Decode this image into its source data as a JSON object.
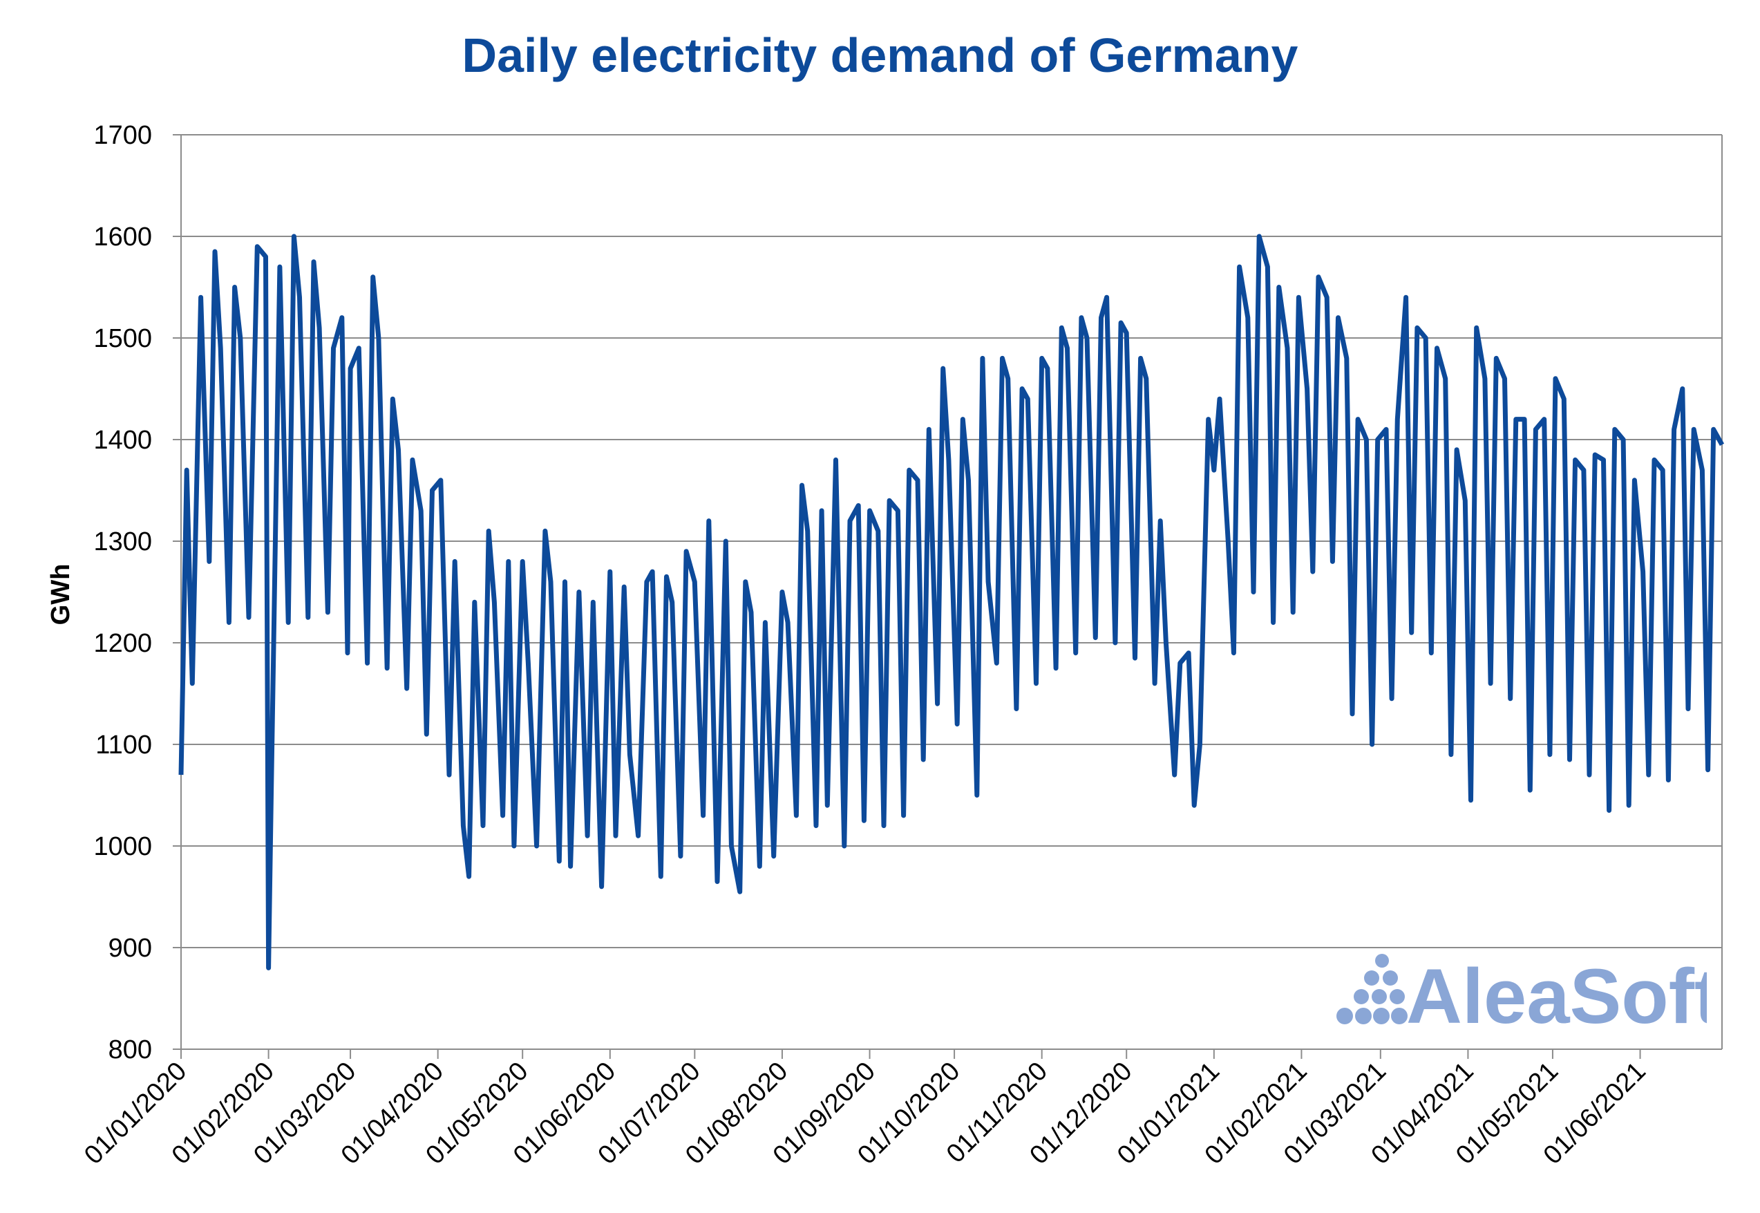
{
  "chart_data": {
    "type": "line",
    "title": "Daily electricity demand of Germany",
    "xlabel": "",
    "ylabel": "GWh",
    "ylim": [
      800,
      1700
    ],
    "yticks": [
      800,
      900,
      1000,
      1100,
      1200,
      1300,
      1400,
      1500,
      1600,
      1700
    ],
    "grid": "horizontal",
    "xtick_labels": [
      "01/01/2020",
      "01/02/2020",
      "01/03/2020",
      "01/04/2020",
      "01/05/2020",
      "01/06/2020",
      "01/07/2020",
      "01/08/2020",
      "01/09/2020",
      "01/10/2020",
      "01/11/2020",
      "01/12/2020",
      "01/01/2021",
      "01/02/2021",
      "01/03/2021",
      "01/04/2021",
      "01/05/2021",
      "01/06/2021"
    ],
    "series": [
      {
        "color": "#0d4a9a",
        "x": [
          "2020-01-01",
          "2020-01-03",
          "2020-01-05",
          "2020-01-08",
          "2020-01-11",
          "2020-01-13",
          "2020-01-15",
          "2020-01-18",
          "2020-01-20",
          "2020-01-22",
          "2020-01-25",
          "2020-01-28",
          "2020-01-31",
          "2020-02-01",
          "2020-02-02",
          "2020-02-05",
          "2020-02-08",
          "2020-02-10",
          "2020-02-12",
          "2020-02-15",
          "2020-02-17",
          "2020-02-19",
          "2020-02-22",
          "2020-02-24",
          "2020-02-27",
          "2020-02-29",
          "2020-03-01",
          "2020-03-04",
          "2020-03-07",
          "2020-03-09",
          "2020-03-11",
          "2020-03-14",
          "2020-03-16",
          "2020-03-18",
          "2020-03-21",
          "2020-03-23",
          "2020-03-26",
          "2020-03-28",
          "2020-03-30",
          "2020-04-02",
          "2020-04-05",
          "2020-04-07",
          "2020-04-10",
          "2020-04-12",
          "2020-04-14",
          "2020-04-17",
          "2020-04-19",
          "2020-04-21",
          "2020-04-24",
          "2020-04-26",
          "2020-04-28",
          "2020-05-01",
          "2020-05-03",
          "2020-05-06",
          "2020-05-09",
          "2020-05-11",
          "2020-05-14",
          "2020-05-16",
          "2020-05-18",
          "2020-05-21",
          "2020-05-24",
          "2020-05-26",
          "2020-05-29",
          "2020-06-01",
          "2020-06-03",
          "2020-06-06",
          "2020-06-08",
          "2020-06-11",
          "2020-06-14",
          "2020-06-16",
          "2020-06-19",
          "2020-06-21",
          "2020-06-23",
          "2020-06-26",
          "2020-06-28",
          "2020-07-01",
          "2020-07-04",
          "2020-07-06",
          "2020-07-09",
          "2020-07-12",
          "2020-07-14",
          "2020-07-17",
          "2020-07-19",
          "2020-07-21",
          "2020-07-24",
          "2020-07-26",
          "2020-07-29",
          "2020-08-01",
          "2020-08-03",
          "2020-08-06",
          "2020-08-08",
          "2020-08-10",
          "2020-08-13",
          "2020-08-15",
          "2020-08-17",
          "2020-08-20",
          "2020-08-23",
          "2020-08-25",
          "2020-08-28",
          "2020-08-30",
          "2020-09-01",
          "2020-09-04",
          "2020-09-06",
          "2020-09-08",
          "2020-09-11",
          "2020-09-13",
          "2020-09-15",
          "2020-09-18",
          "2020-09-20",
          "2020-09-22",
          "2020-09-25",
          "2020-09-27",
          "2020-09-29",
          "2020-10-02",
          "2020-10-04",
          "2020-10-06",
          "2020-10-09",
          "2020-10-11",
          "2020-10-13",
          "2020-10-16",
          "2020-10-18",
          "2020-10-20",
          "2020-10-23",
          "2020-10-25",
          "2020-10-27",
          "2020-10-30",
          "2020-11-01",
          "2020-11-03",
          "2020-11-06",
          "2020-11-08",
          "2020-11-10",
          "2020-11-13",
          "2020-11-15",
          "2020-11-17",
          "2020-11-20",
          "2020-11-22",
          "2020-11-24",
          "2020-11-27",
          "2020-11-29",
          "2020-12-01",
          "2020-12-04",
          "2020-12-06",
          "2020-12-08",
          "2020-12-11",
          "2020-12-13",
          "2020-12-15",
          "2020-12-18",
          "2020-12-20",
          "2020-12-23",
          "2020-12-25",
          "2020-12-27",
          "2020-12-30",
          "2021-01-01",
          "2021-01-03",
          "2021-01-06",
          "2021-01-08",
          "2021-01-10",
          "2021-01-13",
          "2021-01-15",
          "2021-01-17",
          "2021-01-20",
          "2021-01-22",
          "2021-01-24",
          "2021-01-27",
          "2021-01-29",
          "2021-01-31",
          "2021-02-03",
          "2021-02-05",
          "2021-02-07",
          "2021-02-10",
          "2021-02-12",
          "2021-02-14",
          "2021-02-17",
          "2021-02-19",
          "2021-02-21",
          "2021-02-24",
          "2021-02-26",
          "2021-02-28",
          "2021-03-03",
          "2021-03-05",
          "2021-03-07",
          "2021-03-10",
          "2021-03-12",
          "2021-03-14",
          "2021-03-17",
          "2021-03-19",
          "2021-03-21",
          "2021-03-24",
          "2021-03-26",
          "2021-03-28",
          "2021-03-31",
          "2021-04-02",
          "2021-04-04",
          "2021-04-07",
          "2021-04-09",
          "2021-04-11",
          "2021-04-14",
          "2021-04-16",
          "2021-04-18",
          "2021-04-21",
          "2021-04-23",
          "2021-04-25",
          "2021-04-28",
          "2021-04-30",
          "2021-05-02",
          "2021-05-05",
          "2021-05-07",
          "2021-05-09",
          "2021-05-12",
          "2021-05-14",
          "2021-05-16",
          "2021-05-19",
          "2021-05-21",
          "2021-05-23",
          "2021-05-26",
          "2021-05-28",
          "2021-05-30",
          "2021-06-02",
          "2021-06-04",
          "2021-06-06",
          "2021-06-09",
          "2021-06-11",
          "2021-06-13",
          "2021-06-16",
          "2021-06-18",
          "2021-06-20",
          "2021-06-23",
          "2021-06-25",
          "2021-06-27",
          "2021-06-30"
        ],
        "y": [
          1070,
          1370,
          1160,
          1540,
          1280,
          1585,
          1490,
          1220,
          1550,
          1500,
          1225,
          1590,
          1580,
          880,
          1060,
          1570,
          1220,
          1600,
          1540,
          1225,
          1575,
          1510,
          1230,
          1490,
          1520,
          1190,
          1470,
          1490,
          1180,
          1560,
          1500,
          1175,
          1440,
          1390,
          1155,
          1380,
          1330,
          1110,
          1350,
          1360,
          1070,
          1280,
          1020,
          970,
          1240,
          1020,
          1310,
          1240,
          1030,
          1280,
          1000,
          1280,
          1180,
          1000,
          1310,
          1260,
          985,
          1260,
          980,
          1250,
          1010,
          1240,
          960,
          1270,
          1010,
          1255,
          1090,
          1010,
          1260,
          1270,
          970,
          1265,
          1240,
          990,
          1290,
          1260,
          1030,
          1320,
          965,
          1300,
          1000,
          955,
          1260,
          1230,
          980,
          1220,
          990,
          1250,
          1220,
          1030,
          1355,
          1310,
          1020,
          1330,
          1040,
          1380,
          1000,
          1320,
          1335,
          1025,
          1330,
          1310,
          1020,
          1340,
          1330,
          1030,
          1370,
          1360,
          1085,
          1410,
          1140,
          1470,
          1380,
          1120,
          1420,
          1360,
          1050,
          1480,
          1260,
          1180,
          1480,
          1460,
          1135,
          1450,
          1440,
          1160,
          1480,
          1470,
          1175,
          1510,
          1490,
          1190,
          1520,
          1500,
          1205,
          1520,
          1540,
          1200,
          1515,
          1505,
          1185,
          1480,
          1460,
          1160,
          1320,
          1200,
          1070,
          1180,
          1190,
          1040,
          1100,
          1420,
          1370,
          1440,
          1300,
          1190,
          1570,
          1520,
          1250,
          1600,
          1570,
          1220,
          1550,
          1490,
          1230,
          1540,
          1450,
          1270,
          1560,
          1540,
          1280,
          1520,
          1480,
          1130,
          1420,
          1400,
          1100,
          1400,
          1410,
          1145,
          1420,
          1540,
          1210,
          1510,
          1500,
          1190,
          1490,
          1460,
          1090,
          1390,
          1340,
          1045,
          1510,
          1460,
          1160,
          1480,
          1460,
          1145,
          1420,
          1420,
          1055,
          1410,
          1420,
          1090,
          1460,
          1440,
          1085,
          1380,
          1370,
          1070,
          1385,
          1380,
          1035,
          1410,
          1400,
          1040,
          1360,
          1270,
          1070,
          1380,
          1370,
          1065,
          1410,
          1450,
          1135,
          1410,
          1370,
          1075,
          1410,
          1395
        ]
      }
    ]
  },
  "logo": {
    "text": "AleaSoft",
    "color": "#8aa6d6"
  }
}
